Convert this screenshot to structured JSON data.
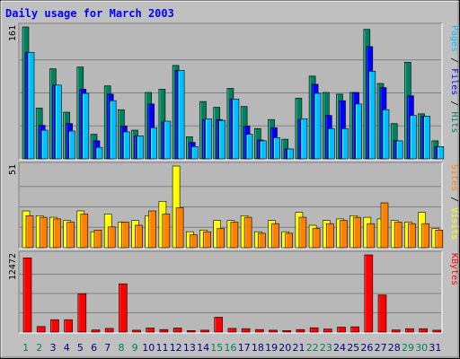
{
  "title": "Daily usage for March 2003",
  "colors": {
    "background": "#c0c0c0",
    "plot_bg": "#b8b8b8",
    "title": "#0000ff",
    "hits": "#00805c",
    "files": "#0000ff",
    "pages": "#00c0ff",
    "visits": "#ffff00",
    "sites": "#ff8000",
    "kbytes": "#ff0000",
    "weekend": "#00805c",
    "weekday": "#000080"
  },
  "chart_data": [
    {
      "type": "bar",
      "panel": "hits-files-pages",
      "ymax": 161,
      "ymax_label": "161",
      "side_label": {
        "parts": [
          {
            "text": "Pages",
            "color": "#00c0ff"
          },
          {
            "text": " / ",
            "color": "#000000"
          },
          {
            "text": "Files",
            "color": "#0000ff"
          },
          {
            "text": " / ",
            "color": "#000000"
          },
          {
            "text": "Hits",
            "color": "#00805c"
          }
        ]
      },
      "categories": [
        "1",
        "2",
        "3",
        "4",
        "5",
        "6",
        "7",
        "8",
        "9",
        "10",
        "11",
        "12",
        "13",
        "14",
        "15",
        "16",
        "17",
        "18",
        "19",
        "20",
        "21",
        "22",
        "23",
        "24",
        "25",
        "26",
        "27",
        "28",
        "29",
        "30",
        "31"
      ],
      "series": [
        {
          "name": "Hits",
          "values": [
            161,
            62,
            110,
            57,
            112,
            30,
            89,
            60,
            35,
            81,
            85,
            114,
            27,
            70,
            63,
            86,
            64,
            37,
            48,
            24,
            74,
            101,
            81,
            79,
            81,
            158,
            92,
            43,
            118,
            55,
            22
          ]
        },
        {
          "name": "Files",
          "values": [
            130,
            41,
            90,
            43,
            85,
            22,
            79,
            40,
            28,
            67,
            45,
            108,
            20,
            48,
            48,
            73,
            40,
            23,
            38,
            12,
            48,
            91,
            53,
            71,
            81,
            137,
            87,
            22,
            77,
            52,
            15
          ]
        },
        {
          "name": "Pages",
          "values": [
            130,
            35,
            90,
            34,
            80,
            14,
            71,
            33,
            28,
            38,
            46,
            108,
            15,
            49,
            47,
            73,
            30,
            22,
            26,
            12,
            49,
            80,
            37,
            37,
            67,
            107,
            60,
            22,
            53,
            52,
            15
          ]
        }
      ]
    },
    {
      "type": "bar",
      "panel": "visits-sites",
      "ymax": 51,
      "ymax_label": "51",
      "side_label": {
        "parts": [
          {
            "text": "Sites",
            "color": "#ff8000"
          },
          {
            "text": " / ",
            "color": "#000000"
          },
          {
            "text": "Visits",
            "color": "#ffff00"
          }
        ]
      },
      "categories": [
        "1",
        "2",
        "3",
        "4",
        "5",
        "6",
        "7",
        "8",
        "9",
        "10",
        "11",
        "12",
        "13",
        "14",
        "15",
        "16",
        "17",
        "18",
        "19",
        "20",
        "21",
        "22",
        "23",
        "24",
        "25",
        "26",
        "27",
        "28",
        "29",
        "30",
        "31"
      ],
      "series": [
        {
          "name": "Visits",
          "values": [
            23,
            20,
            19,
            17,
            23,
            10,
            21,
            16,
            17,
            20,
            29,
            51,
            10,
            11,
            17,
            17,
            20,
            10,
            17,
            10,
            22,
            14,
            17,
            18,
            20,
            19,
            18,
            17,
            16,
            22,
            12
          ]
        },
        {
          "name": "Sites",
          "values": [
            20,
            19,
            18,
            16,
            21,
            11,
            13,
            16,
            14,
            23,
            21,
            25,
            8,
            10,
            12,
            16,
            19,
            9,
            15,
            9,
            19,
            12,
            15,
            17,
            19,
            15,
            28,
            16,
            15,
            15,
            11
          ]
        }
      ]
    },
    {
      "type": "bar",
      "panel": "kbytes",
      "ymax": 12472,
      "ymax_label": "12472",
      "side_label": {
        "parts": [
          {
            "text": "KBytes",
            "color": "#ff0000"
          }
        ]
      },
      "categories": [
        "1",
        "2",
        "3",
        "4",
        "5",
        "6",
        "7",
        "8",
        "9",
        "10",
        "11",
        "12",
        "13",
        "14",
        "15",
        "16",
        "17",
        "18",
        "19",
        "20",
        "21",
        "22",
        "23",
        "24",
        "25",
        "26",
        "27",
        "28",
        "29",
        "30",
        "31"
      ],
      "weekend_days": [
        "1",
        "2",
        "8",
        "9",
        "15",
        "16",
        "22",
        "23",
        "29",
        "30"
      ],
      "series": [
        {
          "name": "KBytes",
          "values": [
            12000,
            900,
            2000,
            2000,
            6200,
            350,
            600,
            7800,
            300,
            650,
            400,
            650,
            250,
            300,
            2400,
            600,
            550,
            400,
            300,
            250,
            400,
            700,
            500,
            800,
            850,
            12472,
            6000,
            350,
            550,
            550,
            300
          ]
        }
      ]
    }
  ]
}
